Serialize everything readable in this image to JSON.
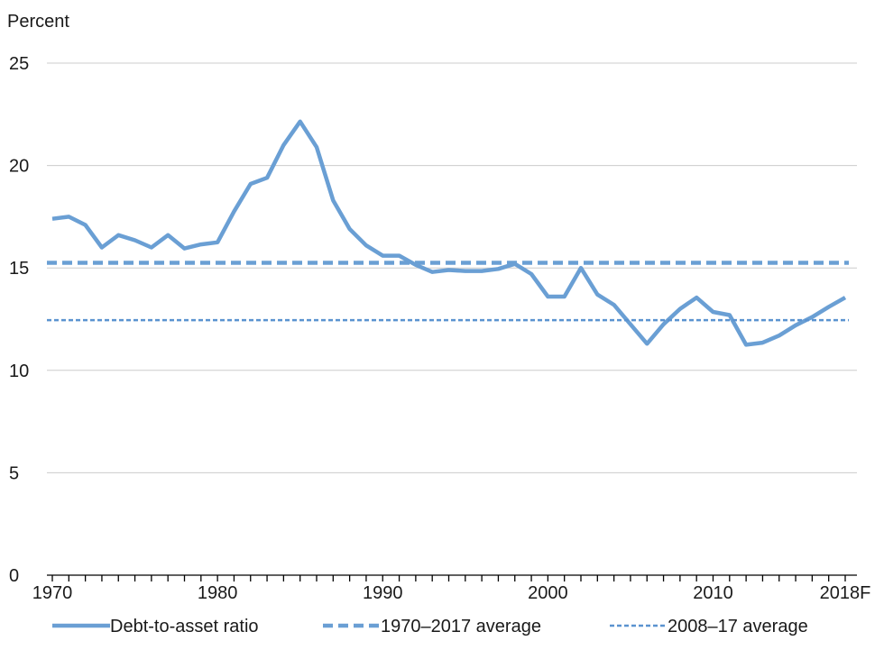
{
  "chart_data": {
    "type": "line",
    "title": "",
    "ylabel": "Percent",
    "xlabel": "",
    "ylim": [
      0,
      25
    ],
    "yticks": [
      0,
      5,
      10,
      15,
      20,
      25
    ],
    "x_tick_labels": [
      {
        "x": 1970,
        "label": "1970"
      },
      {
        "x": 1980,
        "label": "1980"
      },
      {
        "x": 1990,
        "label": "1990"
      },
      {
        "x": 2000,
        "label": "2000"
      },
      {
        "x": 2010,
        "label": "2010"
      },
      {
        "x": 2018,
        "label": "2018F"
      }
    ],
    "grid": true,
    "legend_position": "bottom",
    "x": [
      1970,
      1971,
      1972,
      1973,
      1974,
      1975,
      1976,
      1977,
      1978,
      1979,
      1980,
      1981,
      1982,
      1983,
      1984,
      1985,
      1986,
      1987,
      1988,
      1989,
      1990,
      1991,
      1992,
      1993,
      1994,
      1995,
      1996,
      1997,
      1998,
      1999,
      2000,
      2001,
      2002,
      2003,
      2004,
      2005,
      2006,
      2007,
      2008,
      2009,
      2010,
      2011,
      2012,
      2013,
      2014,
      2015,
      2016,
      2017,
      2018
    ],
    "series": [
      {
        "name": "Debt-to-asset ratio",
        "style": "solid",
        "color": "#6a9fd4",
        "values": [
          17.4,
          17.5,
          17.1,
          16.0,
          16.6,
          16.35,
          16.0,
          16.6,
          15.95,
          16.15,
          16.25,
          17.75,
          19.1,
          19.4,
          21.0,
          22.15,
          20.9,
          18.3,
          16.9,
          16.1,
          15.6,
          15.6,
          15.15,
          14.8,
          14.9,
          14.85,
          14.85,
          14.95,
          15.2,
          14.7,
          13.6,
          13.6,
          15.0,
          13.7,
          13.2,
          12.25,
          11.3,
          12.25,
          13.0,
          13.55,
          12.85,
          12.7,
          11.25,
          11.35,
          11.7,
          12.2,
          12.6,
          13.1,
          13.55
        ]
      },
      {
        "name": "1970–2017 average",
        "style": "dashed",
        "color": "#6a9fd4",
        "constant": 15.25
      },
      {
        "name": "2008–17 average",
        "style": "dotted",
        "color": "#5b93d0",
        "constant": 12.45
      }
    ]
  }
}
